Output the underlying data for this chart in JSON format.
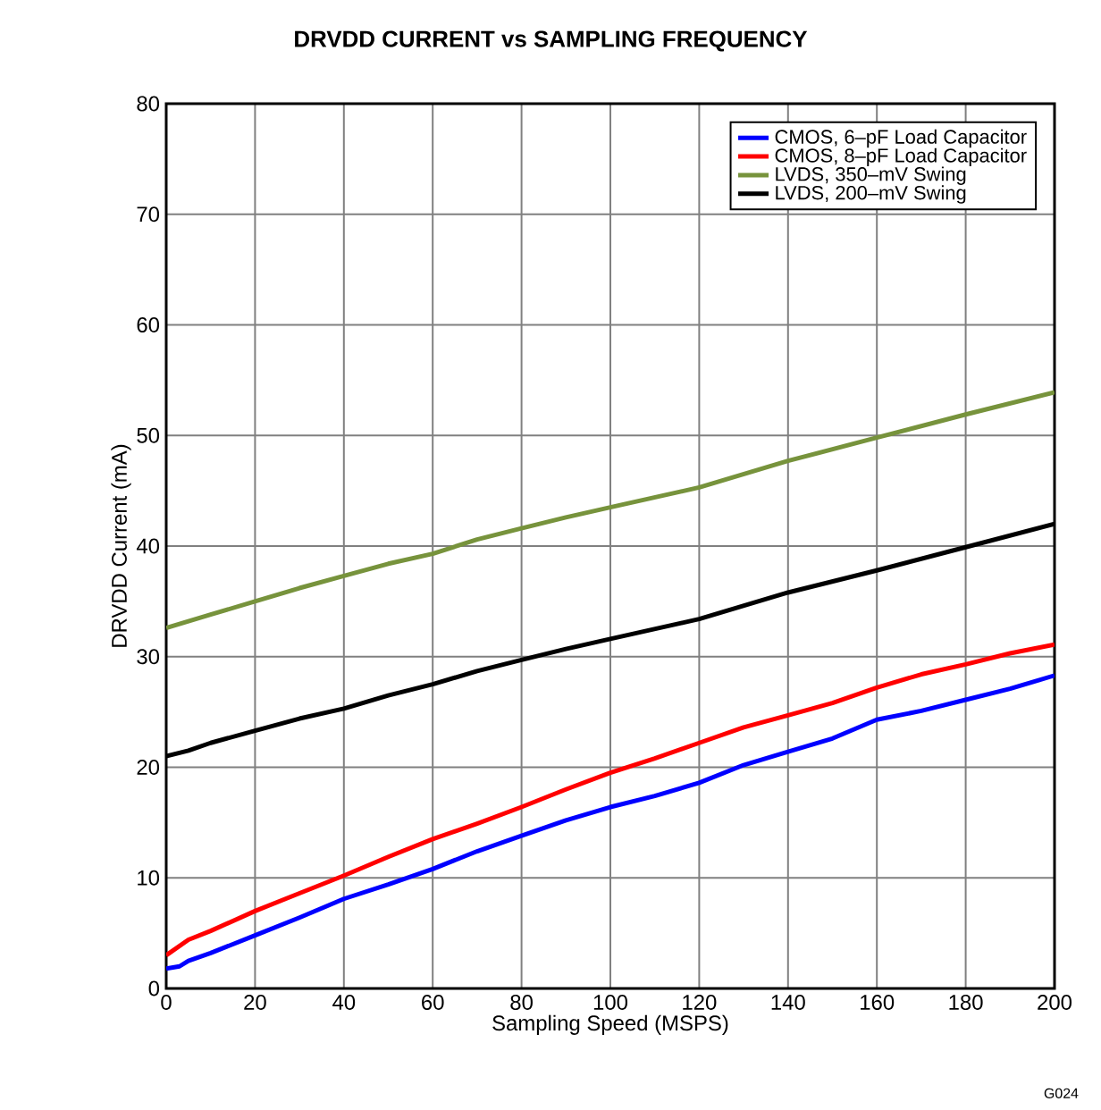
{
  "chart_data": {
    "type": "line",
    "title": "DRVDD CURRENT vs SAMPLING FREQUENCY",
    "xlabel": "Sampling Speed (MSPS)",
    "ylabel": "DRVDD Current (mA)",
    "annotations": [
      "G024"
    ],
    "xlim": [
      0,
      200
    ],
    "ylim": [
      0,
      80
    ],
    "xticks": [
      0,
      20,
      40,
      60,
      80,
      100,
      120,
      140,
      160,
      180,
      200
    ],
    "yticks": [
      0,
      10,
      20,
      30,
      40,
      50,
      60,
      70,
      80
    ],
    "grid": true,
    "legend": "top right",
    "line_style": "solid",
    "marker": "none",
    "series": [
      {
        "name": "CMOS, 6–pF Load Capacitor",
        "color": "#0000ff",
        "x": [
          0,
          3,
          5,
          10,
          20,
          30,
          40,
          50,
          60,
          70,
          80,
          90,
          100,
          110,
          120,
          130,
          140,
          150,
          160,
          170,
          180,
          190,
          200
        ],
        "values": [
          1.8,
          2,
          2.5,
          3.2,
          4.8,
          6.4,
          8.1,
          9.4,
          10.8,
          12.4,
          13.8,
          15.2,
          16.4,
          17.4,
          18.6,
          20.2,
          21.4,
          22.6,
          24.3,
          25.1,
          26.1,
          27.1,
          28.3
        ]
      },
      {
        "name": "CMOS, 8–pF Load Capacitor",
        "color": "#ff0000",
        "x": [
          0,
          5,
          10,
          20,
          30,
          40,
          50,
          60,
          70,
          80,
          90,
          100,
          110,
          120,
          130,
          140,
          150,
          160,
          170,
          180,
          190,
          200
        ],
        "values": [
          3,
          4.4,
          5.2,
          7,
          8.6,
          10.2,
          11.9,
          13.5,
          14.9,
          16.4,
          18,
          19.5,
          20.8,
          22.2,
          23.6,
          24.7,
          25.8,
          27.2,
          28.4,
          29.3,
          30.3,
          31.1
        ]
      },
      {
        "name": "LVDS, 350–mV Swing",
        "color": "#77933c",
        "x": [
          0,
          10,
          20,
          30,
          40,
          50,
          60,
          70,
          80,
          90,
          100,
          120,
          140,
          160,
          180,
          200
        ],
        "values": [
          32.6,
          33.8,
          35,
          36.2,
          37.3,
          38.4,
          39.3,
          40.6,
          41.6,
          42.6,
          43.5,
          45.3,
          47.7,
          49.8,
          51.9,
          53.9
        ]
      },
      {
        "name": "LVDS, 200–mV Swing",
        "color": "#000000",
        "x": [
          0,
          5,
          10,
          20,
          30,
          40,
          50,
          60,
          70,
          80,
          90,
          100,
          120,
          140,
          160,
          180,
          200
        ],
        "values": [
          21,
          21.5,
          22.2,
          23.3,
          24.4,
          25.3,
          26.5,
          27.5,
          28.7,
          29.7,
          30.7,
          31.6,
          33.4,
          35.8,
          37.8,
          39.9,
          42
        ]
      }
    ]
  }
}
